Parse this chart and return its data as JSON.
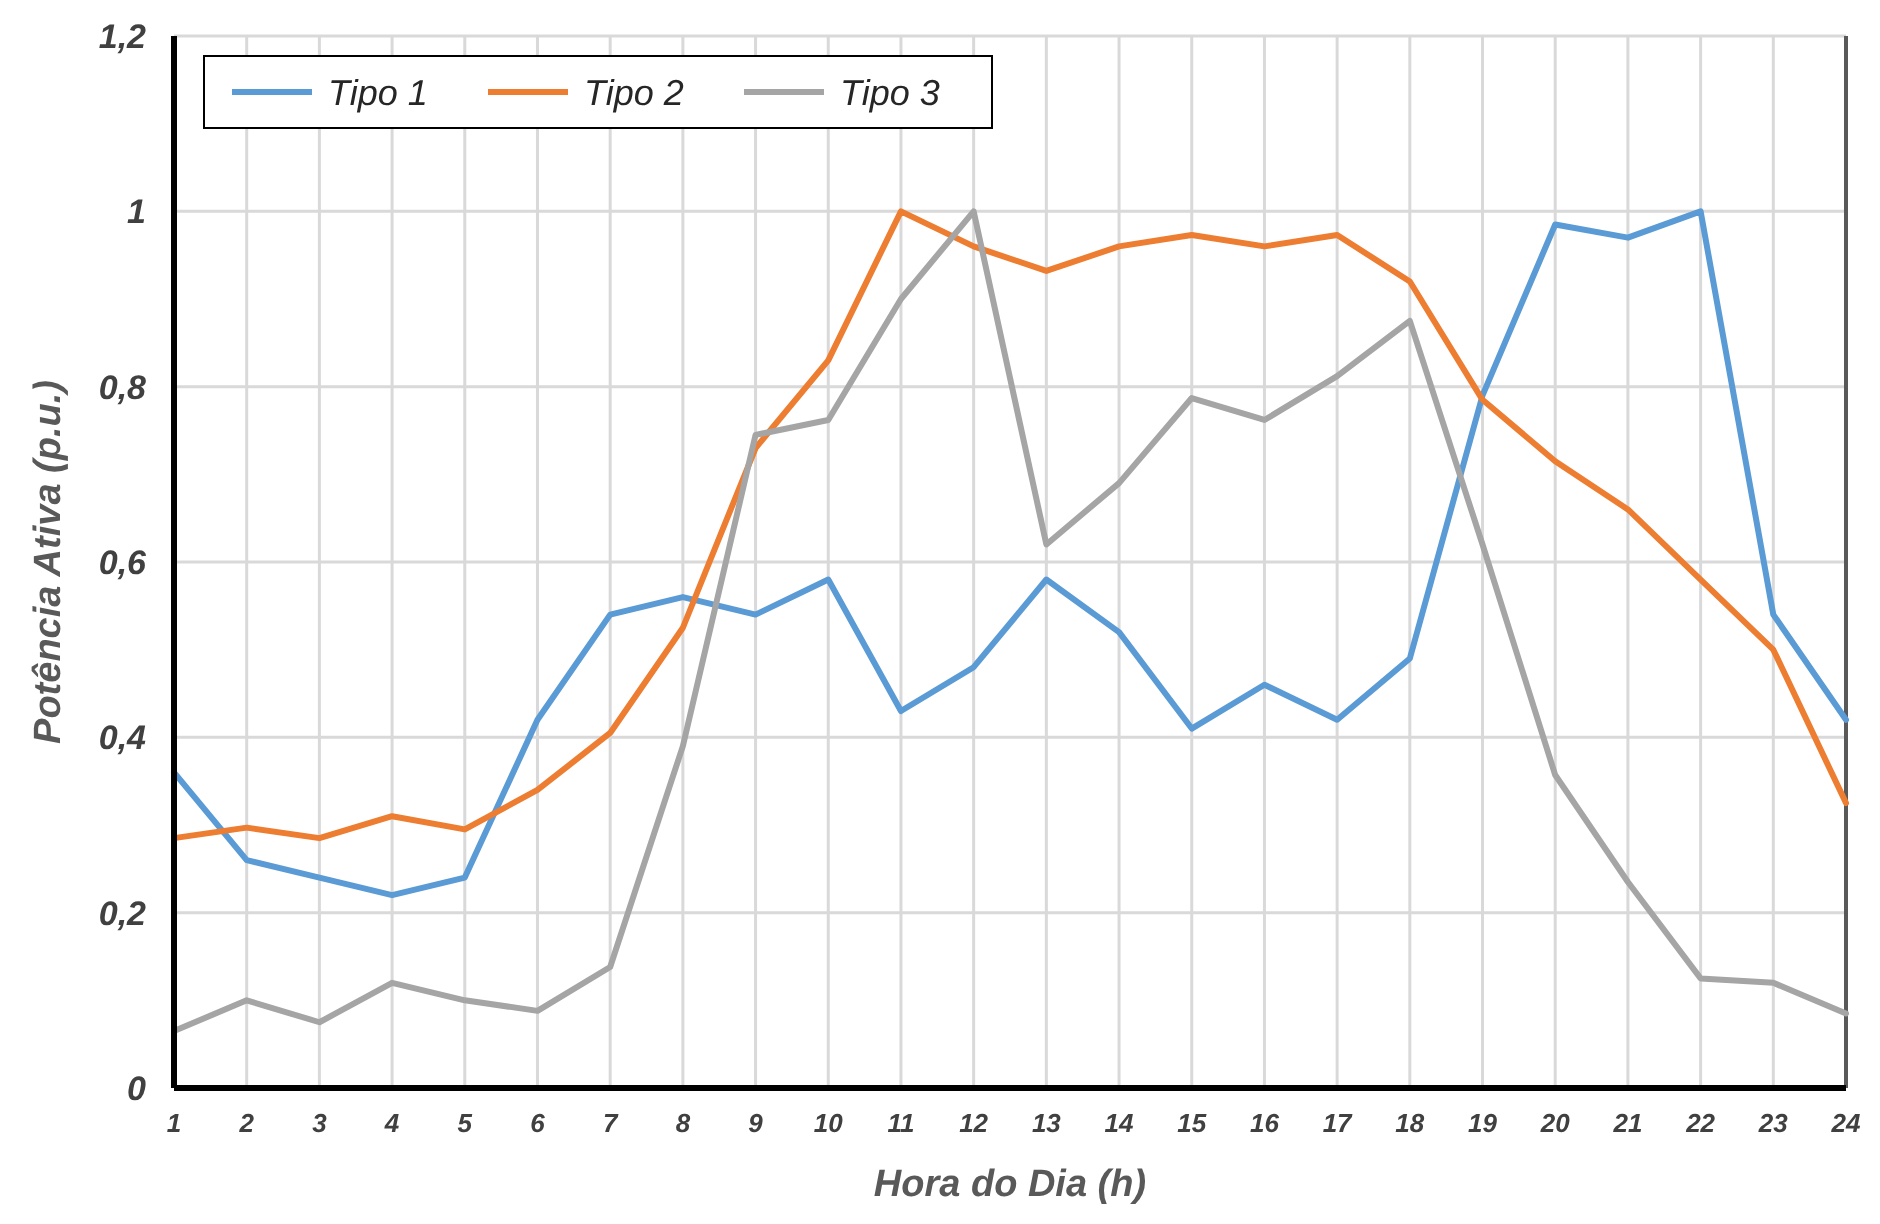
{
  "chart_data": {
    "type": "line",
    "xlabel": "Hora do Dia (h)",
    "ylabel": "Potência Ativa (p.u.)",
    "x": [
      1,
      2,
      3,
      4,
      5,
      6,
      7,
      8,
      9,
      10,
      11,
      12,
      13,
      14,
      15,
      16,
      17,
      18,
      19,
      20,
      21,
      22,
      23,
      24
    ],
    "xlim": [
      1,
      24
    ],
    "xticks": [
      1,
      2,
      3,
      4,
      5,
      6,
      7,
      8,
      9,
      10,
      11,
      12,
      13,
      14,
      15,
      16,
      17,
      18,
      19,
      20,
      21,
      22,
      23,
      24
    ],
    "ylim": [
      0,
      1.2
    ],
    "yticks": [
      0,
      {
        "value": 0.2,
        "label": "0,2"
      },
      {
        "value": 0.4,
        "label": "0,4"
      },
      {
        "value": 0.6,
        "label": "0,6"
      },
      {
        "value": 0.8,
        "label": "0,8"
      },
      1,
      {
        "value": 1.2,
        "label": "1,2"
      }
    ],
    "grid": true,
    "legend": "top left",
    "marker": "none",
    "line_style": "solid",
    "series": [
      {
        "name": "Tipo 1",
        "color": "#5b9bd5",
        "values": [
          0.36,
          0.26,
          0.24,
          0.22,
          0.24,
          0.42,
          0.54,
          0.56,
          0.54,
          0.58,
          0.43,
          0.48,
          0.58,
          0.52,
          0.41,
          0.46,
          0.42,
          0.49,
          0.79,
          0.985,
          0.97,
          1.0,
          0.54,
          0.42
        ]
      },
      {
        "name": "Tipo 2",
        "color": "#ed7d31",
        "values": [
          0.285,
          0.297,
          0.285,
          0.31,
          0.295,
          0.34,
          0.405,
          0.525,
          0.73,
          0.83,
          1.0,
          0.96,
          0.932,
          0.96,
          0.973,
          0.96,
          0.973,
          0.92,
          0.785,
          0.715,
          0.66,
          0.58,
          0.5,
          0.325
        ]
      },
      {
        "name": "Tipo 3",
        "color": "#a5a5a5",
        "values": [
          0.065,
          0.1,
          0.075,
          0.12,
          0.1,
          0.088,
          0.138,
          0.39,
          0.745,
          0.762,
          0.9,
          1.0,
          0.62,
          0.69,
          0.787,
          0.762,
          0.812,
          0.875,
          0.62,
          0.357,
          0.235,
          0.125,
          0.12,
          0.085
        ]
      }
    ]
  }
}
